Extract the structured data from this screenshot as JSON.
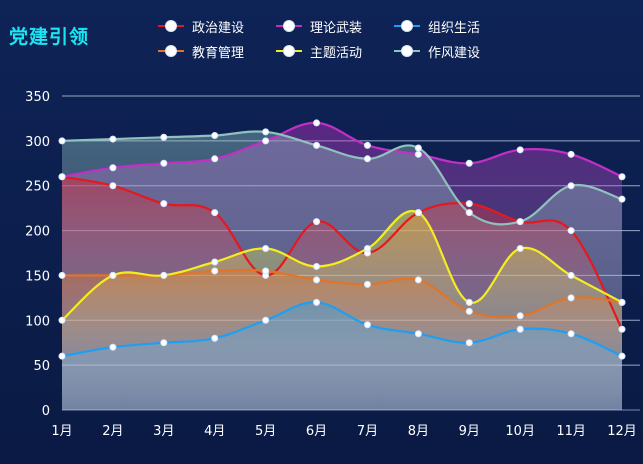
{
  "title": "党建引领",
  "colors": {
    "title": "#19e6f2",
    "axis_text": "#ffffff",
    "grid": "#c9d6ee"
  },
  "chart_data": {
    "type": "area",
    "smooth": true,
    "x": [
      "1月",
      "2月",
      "3月",
      "4月",
      "5月",
      "6月",
      "7月",
      "8月",
      "9月",
      "10月",
      "11月",
      "12月"
    ],
    "ylim": [
      0,
      350
    ],
    "yticks": [
      0,
      50,
      100,
      150,
      200,
      250,
      300,
      350
    ],
    "grid": true,
    "legend_position": "top",
    "series": [
      {
        "name": "政治建设",
        "color": "#e5191d",
        "values": [
          260,
          250,
          230,
          220,
          150,
          210,
          175,
          220,
          230,
          210,
          200,
          90
        ]
      },
      {
        "name": "理论武装",
        "color": "#c32fc6",
        "values": [
          260,
          270,
          275,
          280,
          300,
          320,
          295,
          285,
          275,
          290,
          285,
          260
        ]
      },
      {
        "name": "组织生活",
        "color": "#1e9ff0",
        "values": [
          60,
          70,
          75,
          80,
          100,
          120,
          95,
          85,
          75,
          90,
          85,
          60
        ]
      },
      {
        "name": "教育管理",
        "color": "#e0752a",
        "values": [
          150,
          150,
          150,
          155,
          155,
          145,
          140,
          145,
          110,
          105,
          125,
          120
        ]
      },
      {
        "name": "主题活动",
        "color": "#f2ee22",
        "values": [
          100,
          150,
          150,
          165,
          180,
          160,
          180,
          220,
          120,
          180,
          150,
          120
        ]
      },
      {
        "name": "作风建设",
        "color": "#8fc2bd",
        "values": [
          300,
          302,
          304,
          306,
          310,
          295,
          280,
          292,
          220,
          210,
          250,
          235
        ]
      }
    ]
  }
}
